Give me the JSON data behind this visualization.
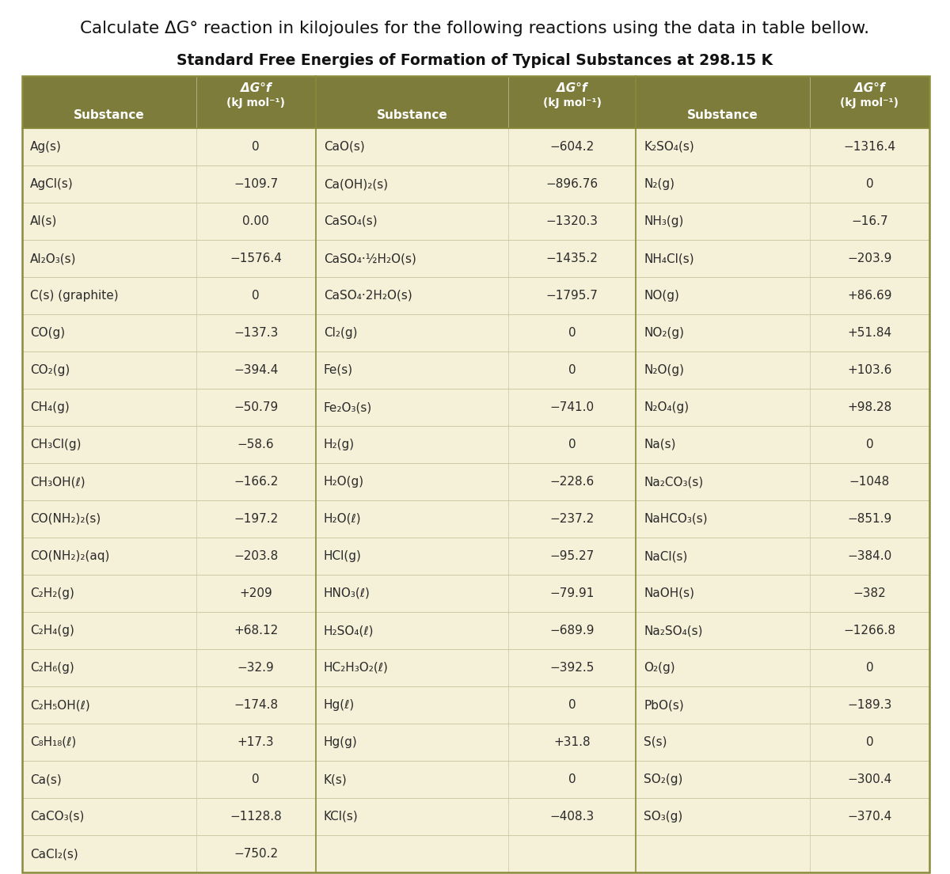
{
  "title_line1": "Calculate ΔG° reaction in kilojoules for the following reactions using the data in table bellow.",
  "table_title": "Standard Free Energies of Formation of Typical Substances at 298.15 K",
  "header_bg": "#7d7c3a",
  "header_text_color": "#ffffff",
  "row_bg": "#f5f0d8",
  "table_border_color": "#8a8a3a",
  "text_color": "#2a2a2a",
  "col1_data": [
    [
      "Ag(s)",
      "0"
    ],
    [
      "AgCl(s)",
      "−109.7"
    ],
    [
      "Al(s)",
      "0.00"
    ],
    [
      "Al₂O₃(s)",
      "−1576.4"
    ],
    [
      "C(s) (graphite)",
      "0"
    ],
    [
      "CO(g)",
      "−137.3"
    ],
    [
      "CO₂(g)",
      "−394.4"
    ],
    [
      "CH₄(g)",
      "−50.79"
    ],
    [
      "CH₃Cl(g)",
      "−58.6"
    ],
    [
      "CH₃OH(ℓ)",
      "−166.2"
    ],
    [
      "CO(NH₂)₂(s)",
      "−197.2"
    ],
    [
      "CO(NH₂)₂(aq)",
      "−203.8"
    ],
    [
      "C₂H₂(g)",
      "+209"
    ],
    [
      "C₂H₄(g)",
      "+68.12"
    ],
    [
      "C₂H₆(g)",
      "−32.9"
    ],
    [
      "C₂H₅OH(ℓ)",
      "−174.8"
    ],
    [
      "C₈H₁₈(ℓ)",
      "+17.3"
    ],
    [
      "Ca(s)",
      "0"
    ],
    [
      "CaCO₃(s)",
      "−1128.8"
    ],
    [
      "CaCl₂(s)",
      "−750.2"
    ]
  ],
  "col2_data": [
    [
      "CaO(s)",
      "−604.2"
    ],
    [
      "Ca(OH)₂(s)",
      "−896.76"
    ],
    [
      "CaSO₄(s)",
      "−1320.3"
    ],
    [
      "CaSO₄·½H₂O(s)",
      "−1435.2"
    ],
    [
      "CaSO₄·2H₂O(s)",
      "−1795.7"
    ],
    [
      "Cl₂(g)",
      "0"
    ],
    [
      "Fe(s)",
      "0"
    ],
    [
      "Fe₂O₃(s)",
      "−741.0"
    ],
    [
      "H₂(g)",
      "0"
    ],
    [
      "H₂O(g)",
      "−228.6"
    ],
    [
      "H₂O(ℓ)",
      "−237.2"
    ],
    [
      "HCl(g)",
      "−95.27"
    ],
    [
      "HNO₃(ℓ)",
      "−79.91"
    ],
    [
      "H₂SO₄(ℓ)",
      "−689.9"
    ],
    [
      "HC₂H₃O₂(ℓ)",
      "−392.5"
    ],
    [
      "Hg(ℓ)",
      "0"
    ],
    [
      "Hg(g)",
      "+31.8"
    ],
    [
      "K(s)",
      "0"
    ],
    [
      "KCl(s)",
      "−408.3"
    ],
    [
      "",
      ""
    ]
  ],
  "col3_data": [
    [
      "K₂SO₄(s)",
      "−1316.4"
    ],
    [
      "N₂(g)",
      "0"
    ],
    [
      "NH₃(g)",
      "−16.7"
    ],
    [
      "NH₄Cl(s)",
      "−203.9"
    ],
    [
      "NO(g)",
      "+86.69"
    ],
    [
      "NO₂(g)",
      "+51.84"
    ],
    [
      "N₂O(g)",
      "+103.6"
    ],
    [
      "N₂O₄(g)",
      "+98.28"
    ],
    [
      "Na(s)",
      "0"
    ],
    [
      "Na₂CO₃(s)",
      "−1048"
    ],
    [
      "NaHCO₃(s)",
      "−851.9"
    ],
    [
      "NaCl(s)",
      "−384.0"
    ],
    [
      "NaOH(s)",
      "−382"
    ],
    [
      "Na₂SO₄(s)",
      "−1266.8"
    ],
    [
      "O₂(g)",
      "0"
    ],
    [
      "PbO(s)",
      "−189.3"
    ],
    [
      "S(s)",
      "0"
    ],
    [
      "SO₂(g)",
      "−300.4"
    ],
    [
      "SO₃(g)",
      "−370.4"
    ],
    [
      "",
      ""
    ]
  ],
  "figwidth": 12.0,
  "figheight": 11.04
}
